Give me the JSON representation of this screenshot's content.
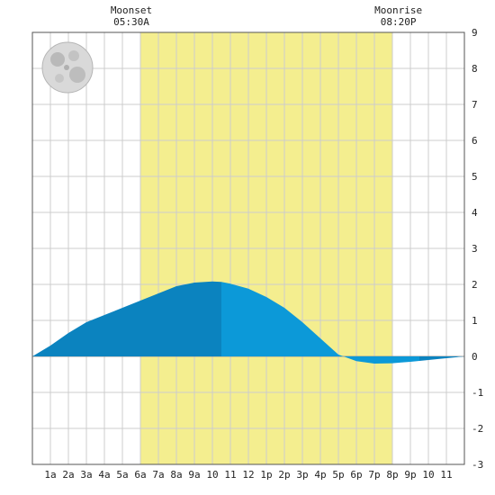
{
  "chart_data": {
    "type": "area",
    "title": "",
    "xlabel": "",
    "ylabel": "",
    "x_unit": "hour of day",
    "xlim": [
      0,
      24
    ],
    "ylim": [
      -3,
      9
    ],
    "y_ticks": [
      -3,
      -2,
      -1,
      0,
      1,
      2,
      3,
      4,
      5,
      6,
      7,
      8,
      9
    ],
    "x_ticks": [
      {
        "x": 1,
        "label": "1a"
      },
      {
        "x": 2,
        "label": "2a"
      },
      {
        "x": 3,
        "label": "3a"
      },
      {
        "x": 4,
        "label": "4a"
      },
      {
        "x": 5,
        "label": "5a"
      },
      {
        "x": 6,
        "label": "6a"
      },
      {
        "x": 7,
        "label": "7a"
      },
      {
        "x": 8,
        "label": "8a"
      },
      {
        "x": 9,
        "label": "9a"
      },
      {
        "x": 10,
        "label": "10"
      },
      {
        "x": 11,
        "label": "11"
      },
      {
        "x": 12,
        "label": "12"
      },
      {
        "x": 13,
        "label": "1p"
      },
      {
        "x": 14,
        "label": "2p"
      },
      {
        "x": 15,
        "label": "3p"
      },
      {
        "x": 16,
        "label": "4p"
      },
      {
        "x": 17,
        "label": "5p"
      },
      {
        "x": 18,
        "label": "6p"
      },
      {
        "x": 19,
        "label": "7p"
      },
      {
        "x": 20,
        "label": "8p"
      },
      {
        "x": 21,
        "label": "9p"
      },
      {
        "x": 22,
        "label": "10"
      },
      {
        "x": 23,
        "label": "11"
      }
    ],
    "grid": true,
    "series": [
      {
        "x": [
          0,
          1,
          2,
          3,
          4,
          5,
          6,
          7,
          8,
          9,
          10,
          10.5,
          11,
          12,
          13,
          14,
          15,
          16,
          17,
          18,
          19,
          20,
          20.5,
          21,
          22,
          23,
          24
        ],
        "values": [
          0,
          0.3,
          0.65,
          0.95,
          1.15,
          1.35,
          1.55,
          1.75,
          1.95,
          2.05,
          2.08,
          2.07,
          2.02,
          1.88,
          1.65,
          1.35,
          0.95,
          0.5,
          0.05,
          -0.13,
          -0.2,
          -0.19,
          -0.17,
          -0.15,
          -0.1,
          -0.05,
          0
        ]
      }
    ],
    "daylight_band": {
      "start": 6,
      "end": 20
    },
    "series_split_x": 10.5,
    "colors": {
      "daylight": "#f4ee8f",
      "tide_before_high": "#0b83bf",
      "tide_after_high": "#0c99d8",
      "tide_after_low": "#0b83bf",
      "grid": "#cccccc",
      "zero_line": "#999999"
    },
    "moon_events": [
      {
        "label": "Moonset",
        "time": "05:30A",
        "x": 5.5
      },
      {
        "label": "Moonrise",
        "time": "08:20P",
        "x": 20.333
      }
    ],
    "moon_phase_icon": "full-moon-icon"
  }
}
